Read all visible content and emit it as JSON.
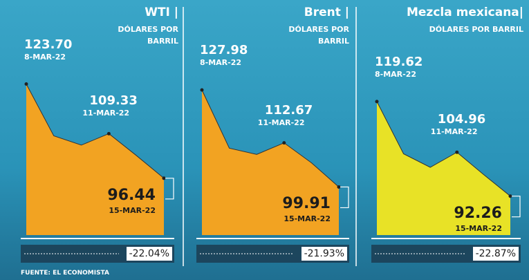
{
  "chart_data": [
    {
      "type": "area",
      "title": "WTI |",
      "subtitle": "DÓLARES POR BARRIL",
      "color": "#f2a322",
      "categories": [
        "8-MAR-22",
        null,
        null,
        "11-MAR-22",
        null,
        "15-MAR-22"
      ],
      "values": [
        123.7,
        108.7,
        106.02,
        109.33,
        103.01,
        96.44
      ],
      "value_labels": [
        "123.70",
        null,
        null,
        "109.33",
        null,
        "96.44"
      ],
      "ylim": [
        80,
        148
      ],
      "change": {
        "value": -22.04,
        "label": "-22.04%"
      }
    },
    {
      "type": "area",
      "title": "Brent |",
      "subtitle": "DÓLARES POR BARRIL",
      "color": "#f2a322",
      "categories": [
        "8-MAR-22",
        null,
        null,
        "11-MAR-22",
        null,
        "15-MAR-22"
      ],
      "values": [
        127.98,
        111.14,
        109.33,
        112.67,
        106.9,
        99.91
      ],
      "value_labels": [
        "127.98",
        null,
        null,
        "112.67",
        null,
        "99.91"
      ],
      "ylim": [
        86,
        154
      ],
      "change": {
        "value": -21.93,
        "label": "-21.93%"
      }
    },
    {
      "type": "area",
      "title": "Mezcla mexicana|",
      "subtitle": "DÓLARES POR BARRIL",
      "color": "#e8e226",
      "categories": [
        "8-MAR-22",
        null,
        null,
        "11-MAR-22",
        null,
        "15-MAR-22"
      ],
      "values": [
        119.62,
        104.5,
        100.6,
        104.96,
        98.5,
        92.26
      ],
      "value_labels": [
        "119.62",
        null,
        null,
        "104.96",
        null,
        "92.26"
      ],
      "ylim": [
        81,
        149
      ],
      "change": {
        "value": -22.87,
        "label": "-22.87%"
      }
    }
  ],
  "source": "FUENTE: EL ECONOMISTA"
}
